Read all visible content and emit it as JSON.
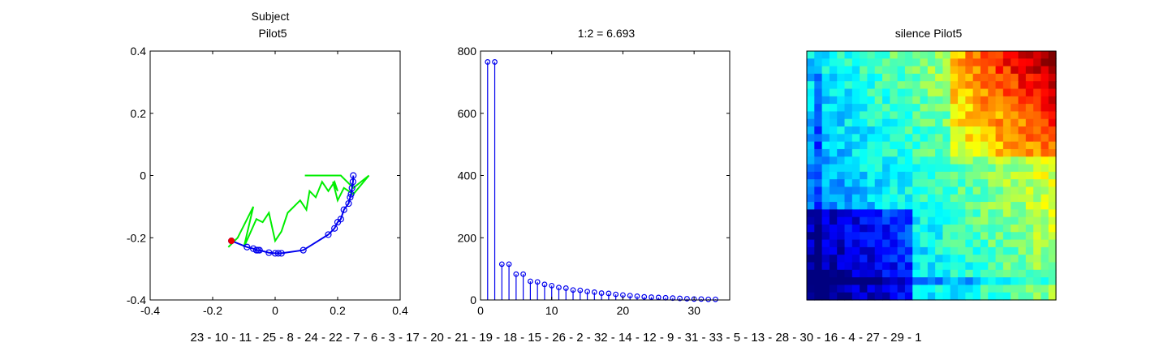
{
  "chart_data": [
    {
      "type": "scatter",
      "title_lines": [
        "Subject",
        "Pilot5"
      ],
      "xlim": [
        -0.4,
        0.4
      ],
      "ylim": [
        -0.4,
        0.4
      ],
      "xticks": [
        -0.4,
        -0.2,
        0,
        0.2,
        0.4
      ],
      "yticks": [
        -0.4,
        -0.2,
        0,
        0.2,
        0.4
      ],
      "xtick_labels": [
        "-0.4",
        "-0.2",
        "0",
        "0.2",
        "0.4"
      ],
      "ytick_labels": [
        "-0.4",
        "-0.2",
        "0",
        "0.2",
        "0.4"
      ],
      "series": [
        {
          "color": "#00ee00",
          "style": "line",
          "x": [
            -0.15,
            -0.12,
            -0.07,
            -0.1,
            -0.06,
            -0.04,
            -0.02,
            0.0,
            0.02,
            0.04,
            0.06,
            0.04,
            0.08,
            0.1,
            0.11,
            0.13,
            0.15,
            0.17,
            0.19,
            0.2,
            0.185,
            0.2,
            0.22,
            0.25,
            0.3,
            0.25,
            0.21,
            0.18,
            0.1,
            0.095
          ],
          "y": [
            -0.23,
            -0.2,
            -0.1,
            -0.23,
            -0.14,
            -0.15,
            -0.12,
            -0.21,
            -0.18,
            -0.12,
            -0.1,
            -0.12,
            -0.08,
            -0.11,
            -0.05,
            -0.07,
            -0.02,
            -0.05,
            -0.02,
            -0.05,
            -0.02,
            -0.08,
            -0.04,
            -0.06,
            0.0,
            -0.04,
            0.0,
            0.0,
            0.0,
            0.0
          ]
        },
        {
          "color": "#0000ee",
          "style": "line-markers",
          "x": [
            -0.14,
            -0.09,
            -0.07,
            -0.06,
            -0.055,
            -0.05,
            -0.02,
            0.0,
            0.01,
            0.02,
            0.09,
            0.17,
            0.19,
            0.2,
            0.21,
            0.22,
            0.235,
            0.24,
            0.243,
            0.246,
            0.249,
            0.25
          ],
          "y": [
            -0.21,
            -0.23,
            -0.235,
            -0.24,
            -0.24,
            -0.24,
            -0.248,
            -0.25,
            -0.25,
            -0.25,
            -0.24,
            -0.19,
            -0.17,
            -0.15,
            -0.14,
            -0.11,
            -0.09,
            -0.07,
            -0.06,
            -0.04,
            -0.02,
            0.0
          ]
        },
        {
          "color": "#ee0000",
          "style": "marker",
          "x": [
            -0.14
          ],
          "y": [
            -0.21
          ]
        }
      ]
    },
    {
      "type": "bar",
      "subtype": "stem",
      "title": "1:2 = 6.693",
      "xlim": [
        0,
        35
      ],
      "ylim": [
        0,
        800
      ],
      "xticks": [
        0,
        10,
        20,
        30
      ],
      "yticks": [
        0,
        200,
        400,
        600,
        800
      ],
      "xtick_labels": [
        "0",
        "10",
        "20",
        "30"
      ],
      "ytick_labels": [
        "0",
        "200",
        "400",
        "600",
        "800"
      ],
      "color": "#0000ee",
      "categories": [
        1,
        2,
        3,
        4,
        5,
        6,
        7,
        8,
        9,
        10,
        11,
        12,
        13,
        14,
        15,
        16,
        17,
        18,
        19,
        20,
        21,
        22,
        23,
        24,
        25,
        26,
        27,
        28,
        29,
        30,
        31,
        32,
        33
      ],
      "values": [
        765,
        765,
        115,
        115,
        83,
        83,
        60,
        58,
        50,
        46,
        40,
        38,
        32,
        31,
        27,
        25,
        22,
        21,
        18,
        16,
        14,
        12,
        10,
        9,
        8,
        7,
        6,
        5,
        4,
        3,
        3,
        2,
        2
      ]
    },
    {
      "type": "heatmap",
      "title": "silence Pilot5",
      "colormap": "jet",
      "rows": 33,
      "cols": 33
    }
  ],
  "sequence_text": "23 - 10 - 11 - 25 - 8 - 24 - 22 - 7 - 6 - 3 - 17 - 20 - 21 - 19 - 18 - 15 - 26 - 2 - 32 - 14 - 12 - 9 - 31 - 33 - 5 - 13 - 28 - 30 - 16 - 4 - 27 - 29 - 1"
}
